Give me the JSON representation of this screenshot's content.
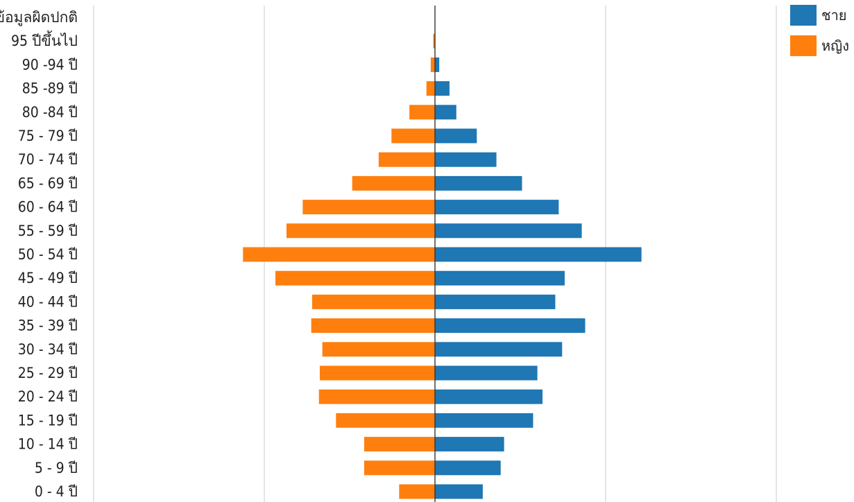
{
  "chart_data": {
    "type": "bar",
    "orientation": "horizontal",
    "layout": "population-pyramid",
    "categories": [
      "ข้อมูลผิดปกติ",
      "95 ปีขึ้นไป",
      "90 -94 ปี",
      "85 -89 ปี",
      "80 -84 ปี",
      "75 - 79 ปี",
      "70 - 74 ปี",
      "65 - 69 ปี",
      "60 - 64 ปี",
      "55 - 59 ปี",
      "50 - 54 ปี",
      "45 - 49 ปี",
      "40 - 44 ปี",
      "35 - 39 ปี",
      "30 - 34 ปี",
      "25 - 29 ปี",
      "20 - 24 ปี",
      "15 - 19 ปี",
      "10 - 14 ปี",
      "5 - 9 ปี",
      "0 - 4 ปี"
    ],
    "series": [
      {
        "name": "ชาย",
        "color": "#1f77b4",
        "side": "right",
        "values": [
          0,
          0,
          0.25,
          0.85,
          1.25,
          2.45,
          3.6,
          5.1,
          7.25,
          8.6,
          12.1,
          7.6,
          7.05,
          8.8,
          7.45,
          6.0,
          6.3,
          5.75,
          4.05,
          3.85,
          2.8
        ]
      },
      {
        "name": "หญิง",
        "color": "#ff7f0e",
        "side": "left",
        "values": [
          0,
          0.1,
          0.25,
          0.5,
          1.5,
          2.55,
          3.3,
          4.85,
          7.75,
          8.7,
          11.25,
          9.35,
          7.2,
          7.25,
          6.6,
          6.75,
          6.8,
          5.8,
          4.15,
          4.15,
          2.1
        ]
      }
    ],
    "xlim": [
      -20,
      20
    ],
    "x_gridlines": [
      -20,
      -10,
      0,
      10,
      20
    ],
    "grid": true,
    "legend_position": "top-right"
  }
}
